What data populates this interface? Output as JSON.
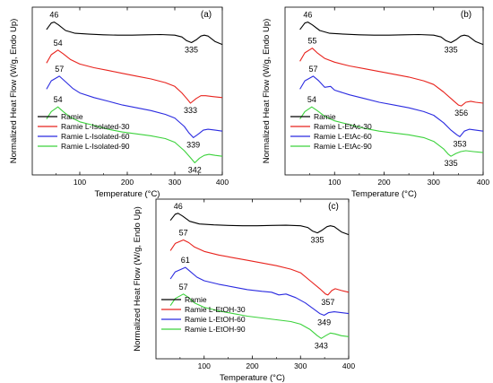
{
  "figure": {
    "panels": [
      {
        "tag": "(a)"
      },
      {
        "tag": "(b)"
      },
      {
        "tag": "(c)"
      }
    ]
  },
  "chart_data": [
    {
      "type": "line",
      "panel": "(a)",
      "xlabel": "Temperature (°C)",
      "ylabel": "Normalized Heat Flow (W/g, Endo Up)",
      "xlim": [
        0,
        400
      ],
      "x_ticks": [
        100,
        200,
        300,
        400
      ],
      "y_ticks_shown": false,
      "legend_position": "bottom-left",
      "series": [
        {
          "name": "Ramie",
          "color": "#000000",
          "offset": 0.0,
          "x": [
            30,
            40,
            46,
            55,
            70,
            90,
            120,
            150,
            180,
            210,
            240,
            270,
            300,
            315,
            325,
            335,
            345,
            355,
            362,
            370,
            385,
            400
          ],
          "y": [
            0.6,
            0.95,
            1.0,
            0.85,
            0.55,
            0.4,
            0.35,
            0.32,
            0.3,
            0.3,
            0.32,
            0.33,
            0.3,
            0.2,
            0.0,
            -0.1,
            0.05,
            0.25,
            0.3,
            0.25,
            -0.05,
            -0.2
          ]
        },
        {
          "name": "Ramie L-Isolated-30",
          "color": "#e8231d",
          "offset": -1.5,
          "x": [
            30,
            40,
            54,
            65,
            80,
            100,
            130,
            160,
            190,
            220,
            250,
            280,
            300,
            315,
            325,
            333,
            345,
            355,
            365,
            380,
            400
          ],
          "y": [
            0.3,
            0.75,
            1.0,
            0.8,
            0.5,
            0.25,
            0.05,
            -0.1,
            -0.25,
            -0.4,
            -0.55,
            -0.75,
            -0.95,
            -1.3,
            -1.6,
            -1.85,
            -1.6,
            -1.45,
            -1.45,
            -1.5,
            -1.55
          ]
        },
        {
          "name": "Ramie L-Isolated-60",
          "color": "#2b2be0",
          "offset": -3.0,
          "x": [
            30,
            40,
            57,
            70,
            85,
            100,
            130,
            160,
            190,
            220,
            250,
            280,
            300,
            320,
            330,
            339,
            350,
            360,
            370,
            385,
            400
          ],
          "y": [
            0.4,
            0.85,
            1.1,
            0.8,
            0.45,
            0.2,
            -0.05,
            -0.25,
            -0.45,
            -0.6,
            -0.75,
            -0.95,
            -1.15,
            -1.6,
            -1.95,
            -2.2,
            -2.0,
            -1.8,
            -1.75,
            -1.8,
            -1.85
          ]
        },
        {
          "name": "Ramie L-Isolated-90",
          "color": "#3cd23c",
          "offset": -4.5,
          "x": [
            30,
            40,
            54,
            65,
            80,
            100,
            130,
            160,
            190,
            220,
            250,
            280,
            300,
            320,
            332,
            342,
            352,
            362,
            372,
            385,
            400
          ],
          "y": [
            0.3,
            0.7,
            0.95,
            0.7,
            0.4,
            0.15,
            -0.05,
            -0.25,
            -0.4,
            -0.5,
            -0.6,
            -0.75,
            -0.95,
            -1.4,
            -1.75,
            -2.05,
            -1.8,
            -1.65,
            -1.6,
            -1.65,
            -1.7
          ]
        }
      ],
      "annotations": [
        {
          "text": "46",
          "x": 46,
          "series": 0
        },
        {
          "text": "54",
          "x": 54,
          "series": 1
        },
        {
          "text": "57",
          "x": 57,
          "series": 2
        },
        {
          "text": "54",
          "x": 54,
          "series": 3
        },
        {
          "text": "335",
          "x": 335,
          "series": 0
        },
        {
          "text": "333",
          "x": 333,
          "series": 1
        },
        {
          "text": "339",
          "x": 339,
          "series": 2
        },
        {
          "text": "342",
          "x": 342,
          "series": 3
        }
      ]
    },
    {
      "type": "line",
      "panel": "(b)",
      "xlabel": "Temperature (°C)",
      "ylabel": "Normalized Heat Flow (W/g, Endo Up)",
      "xlim": [
        0,
        400
      ],
      "x_ticks": [
        100,
        200,
        300,
        400
      ],
      "y_ticks_shown": false,
      "legend_position": "bottom-left",
      "series": [
        {
          "name": "Ramie",
          "color": "#000000",
          "offset": 0.0,
          "x": [
            30,
            40,
            46,
            55,
            70,
            90,
            120,
            150,
            180,
            210,
            240,
            270,
            300,
            315,
            325,
            335,
            345,
            355,
            362,
            370,
            385,
            400
          ],
          "y": [
            0.6,
            0.95,
            1.0,
            0.85,
            0.55,
            0.4,
            0.35,
            0.32,
            0.3,
            0.3,
            0.32,
            0.33,
            0.3,
            0.2,
            0.0,
            -0.1,
            0.05,
            0.25,
            0.3,
            0.25,
            -0.05,
            -0.2
          ]
        },
        {
          "name": "Ramie L-EtAc-30",
          "color": "#e8231d",
          "offset": -1.5,
          "x": [
            30,
            40,
            55,
            65,
            80,
            100,
            130,
            160,
            190,
            220,
            250,
            280,
            300,
            320,
            335,
            350,
            356,
            365,
            375,
            385,
            400
          ],
          "y": [
            0.4,
            0.85,
            1.1,
            0.85,
            0.55,
            0.35,
            0.15,
            0.0,
            -0.15,
            -0.3,
            -0.45,
            -0.65,
            -0.85,
            -1.25,
            -1.6,
            -1.95,
            -2.0,
            -1.8,
            -1.75,
            -1.8,
            -1.85
          ]
        },
        {
          "name": "Ramie L-EtAc-60",
          "color": "#2b2be0",
          "offset": -3.0,
          "x": [
            30,
            40,
            57,
            68,
            80,
            92,
            100,
            130,
            160,
            190,
            220,
            250,
            280,
            300,
            320,
            335,
            347,
            353,
            362,
            372,
            385,
            400
          ],
          "y": [
            0.4,
            0.85,
            1.1,
            0.85,
            0.5,
            0.55,
            0.35,
            0.1,
            -0.1,
            -0.3,
            -0.45,
            -0.6,
            -0.8,
            -1.0,
            -1.4,
            -1.8,
            -2.05,
            -2.15,
            -1.85,
            -1.75,
            -1.8,
            -1.85
          ]
        },
        {
          "name": "Ramie L-EtAc-90",
          "color": "#3cd23c",
          "offset": -4.5,
          "x": [
            30,
            40,
            54,
            65,
            80,
            100,
            130,
            160,
            190,
            220,
            250,
            280,
            300,
            320,
            330,
            335,
            345,
            355,
            365,
            380,
            400
          ],
          "y": [
            0.3,
            0.7,
            0.95,
            0.75,
            0.45,
            0.2,
            0.0,
            -0.2,
            -0.35,
            -0.45,
            -0.55,
            -0.7,
            -0.9,
            -1.3,
            -1.6,
            -1.7,
            -1.55,
            -1.45,
            -1.4,
            -1.45,
            -1.5
          ]
        }
      ],
      "annotations": [
        {
          "text": "46",
          "x": 46,
          "series": 0
        },
        {
          "text": "55",
          "x": 55,
          "series": 1
        },
        {
          "text": "57",
          "x": 57,
          "series": 2
        },
        {
          "text": "54",
          "x": 54,
          "series": 3
        },
        {
          "text": "335",
          "x": 335,
          "series": 0
        },
        {
          "text": "356",
          "x": 356,
          "series": 1
        },
        {
          "text": "353",
          "x": 353,
          "series": 2
        },
        {
          "text": "335",
          "x": 335,
          "series": 3
        }
      ]
    },
    {
      "type": "line",
      "panel": "(c)",
      "xlabel": "Temperature (°C)",
      "ylabel": "Normalized Heat Flow (W/g, Endo Up)",
      "xlim": [
        0,
        400
      ],
      "x_ticks": [
        100,
        200,
        300,
        400
      ],
      "y_ticks_shown": false,
      "legend_position": "bottom-left",
      "series": [
        {
          "name": "Ramie",
          "color": "#000000",
          "offset": 0.0,
          "x": [
            30,
            40,
            46,
            55,
            70,
            90,
            120,
            150,
            180,
            210,
            240,
            270,
            300,
            315,
            325,
            335,
            345,
            355,
            362,
            370,
            385,
            400
          ],
          "y": [
            0.6,
            0.95,
            1.0,
            0.85,
            0.55,
            0.4,
            0.35,
            0.32,
            0.3,
            0.3,
            0.32,
            0.33,
            0.3,
            0.2,
            0.0,
            -0.1,
            0.05,
            0.25,
            0.3,
            0.25,
            -0.05,
            -0.2
          ]
        },
        {
          "name": "Ramie L-EtOH-30",
          "color": "#e8231d",
          "offset": -1.5,
          "x": [
            30,
            40,
            57,
            68,
            80,
            100,
            130,
            160,
            190,
            220,
            250,
            280,
            300,
            320,
            340,
            352,
            357,
            365,
            372,
            385,
            400
          ],
          "y": [
            0.4,
            0.8,
            1.0,
            0.85,
            0.6,
            0.35,
            0.15,
            0.0,
            -0.15,
            -0.3,
            -0.45,
            -0.65,
            -0.85,
            -1.3,
            -1.75,
            -2.05,
            -2.1,
            -1.85,
            -1.75,
            -1.85,
            -1.95
          ]
        },
        {
          "name": "Ramie L-EtOH-60",
          "color": "#2b2be0",
          "offset": -3.0,
          "x": [
            30,
            40,
            61,
            72,
            85,
            100,
            130,
            160,
            190,
            220,
            240,
            255,
            270,
            290,
            310,
            330,
            340,
            349,
            358,
            370,
            385,
            400
          ],
          "y": [
            0.3,
            0.7,
            0.95,
            0.7,
            0.4,
            0.2,
            0.0,
            -0.15,
            -0.3,
            -0.4,
            -0.45,
            -0.6,
            -0.55,
            -0.75,
            -1.05,
            -1.45,
            -1.65,
            -1.75,
            -1.6,
            -1.55,
            -1.6,
            -1.65
          ]
        },
        {
          "name": "Ramie L-EtOH-90",
          "color": "#3cd23c",
          "offset": -4.5,
          "x": [
            30,
            40,
            57,
            68,
            80,
            100,
            130,
            160,
            190,
            220,
            250,
            280,
            300,
            320,
            335,
            343,
            352,
            362,
            372,
            385,
            400
          ],
          "y": [
            0.3,
            0.7,
            0.95,
            0.75,
            0.45,
            0.2,
            0.0,
            -0.15,
            -0.3,
            -0.4,
            -0.5,
            -0.6,
            -0.75,
            -1.05,
            -1.4,
            -1.55,
            -1.4,
            -1.25,
            -1.3,
            -1.4,
            -1.45
          ]
        }
      ],
      "annotations": [
        {
          "text": "46",
          "x": 46,
          "series": 0
        },
        {
          "text": "57",
          "x": 57,
          "series": 1
        },
        {
          "text": "61",
          "x": 61,
          "series": 2
        },
        {
          "text": "57",
          "x": 57,
          "series": 3
        },
        {
          "text": "335",
          "x": 335,
          "series": 0
        },
        {
          "text": "357",
          "x": 357,
          "series": 1
        },
        {
          "text": "349",
          "x": 349,
          "series": 2
        },
        {
          "text": "343",
          "x": 343,
          "series": 3
        }
      ]
    }
  ]
}
